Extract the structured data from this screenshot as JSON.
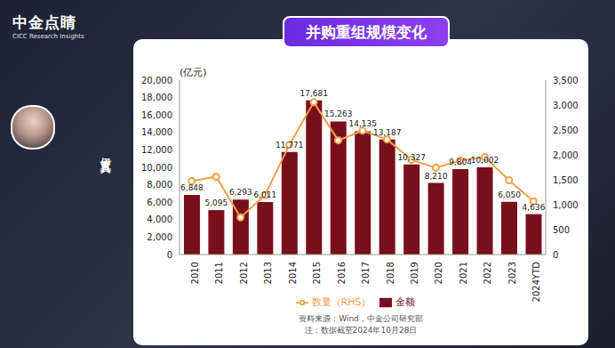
{
  "page": {
    "logo": "中金点睛",
    "logo_subtitle": "CICC Research Insights",
    "presenter": "伊真真"
  },
  "chart_data": {
    "type": "bar",
    "title": "并购重组规模变化",
    "y_label": "(亿元)",
    "source": "资料来源：Wind，中金公司研究部",
    "note": "注：数据截至2024年10月28日",
    "categories": [
      "2010",
      "2011",
      "2012",
      "2013",
      "2014",
      "2015",
      "2016",
      "2017",
      "2018",
      "2019",
      "2020",
      "2021",
      "2022",
      "2023",
      "2024YTD"
    ],
    "series": [
      {
        "name": "金额",
        "type": "bar",
        "color": "#7a0f1c",
        "values": [
          6848,
          5095,
          6293,
          6011,
          11771,
          17681,
          15263,
          14135,
          13187,
          10327,
          8210,
          9804,
          10002,
          6050,
          4636
        ],
        "value_labels": [
          "6,848",
          "5,095",
          "6,293",
          "6,011",
          "11,771",
          "17,681",
          "15,263",
          "14,135",
          "13,187",
          "10,327",
          "8,210",
          "9,804",
          "10,002",
          "6,050",
          "4,636"
        ]
      },
      {
        "name": "数量（RHS）",
        "type": "line",
        "axis": "y2",
        "color": "#f0a04b",
        "marker": "circle",
        "line_style": "solid",
        "values": [
          1475,
          1563,
          746,
          1190,
          2203,
          3056,
          2292,
          2487,
          2310,
          1900,
          1741,
          1883,
          1954,
          1492,
          1066
        ]
      }
    ],
    "ylim": [
      0,
      20000
    ],
    "yticks": [
      0,
      {
        "value": 2000,
        "label": "2,000"
      },
      {
        "value": 4000,
        "label": "4,000"
      },
      {
        "value": 6000,
        "label": "6,000"
      },
      {
        "value": 8000,
        "label": "8,000"
      },
      {
        "value": 10000,
        "label": "10,000"
      },
      {
        "value": 12000,
        "label": "12,000"
      },
      {
        "value": 14000,
        "label": "14,000"
      },
      {
        "value": 16000,
        "label": "16,000"
      },
      {
        "value": 18000,
        "label": "18,000"
      },
      {
        "value": 20000,
        "label": "20,000"
      }
    ],
    "y2lim": [
      0,
      3500
    ],
    "y2ticks": [
      0,
      500,
      {
        "value": 1000,
        "label": "1,000"
      },
      {
        "value": 1500,
        "label": "1,500"
      },
      {
        "value": 2000,
        "label": "2,000"
      },
      {
        "value": 2500,
        "label": "2,500"
      },
      {
        "value": 3000,
        "label": "3,000"
      },
      {
        "value": 3500,
        "label": "3,500"
      }
    ],
    "data_labels": true,
    "grid": false,
    "legend": "bottom"
  }
}
